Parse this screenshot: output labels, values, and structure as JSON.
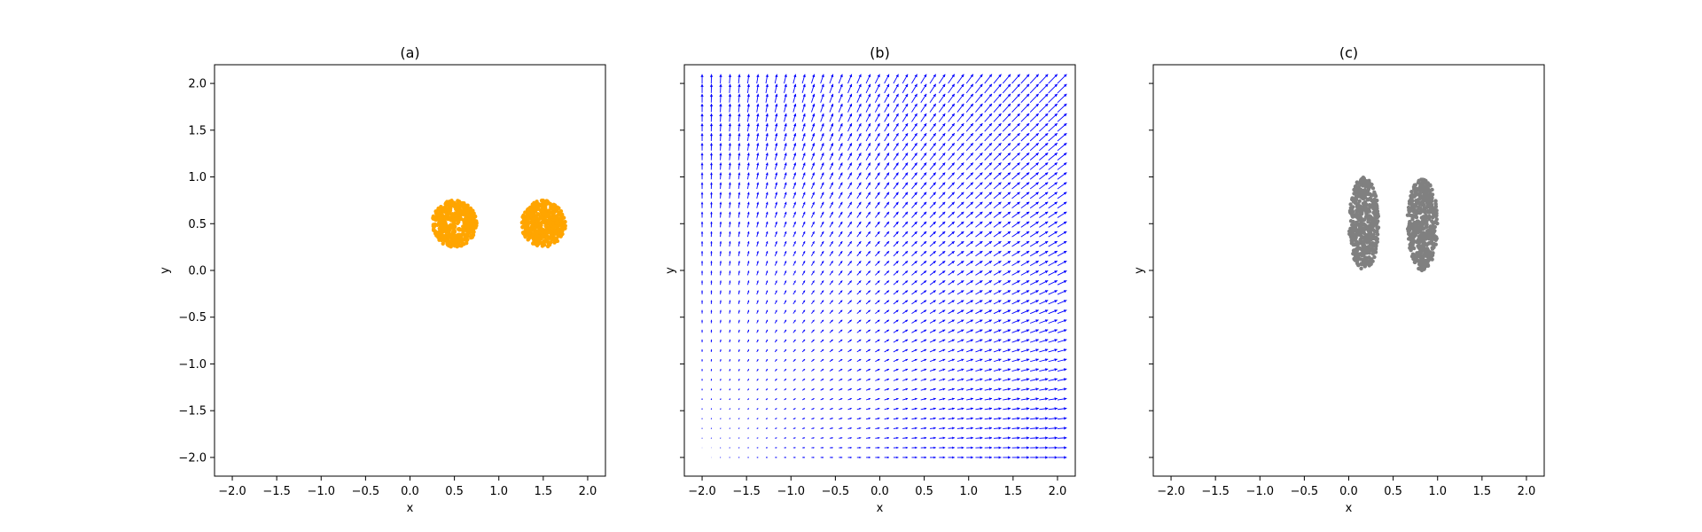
{
  "chart_data": [
    {
      "type": "scatter",
      "title": "(a)",
      "xlabel": "x",
      "ylabel": "y",
      "xlim": [
        -2.2,
        2.2
      ],
      "ylim": [
        -2.2,
        2.2
      ],
      "xticks": [
        -2.0,
        -1.5,
        -1.0,
        -0.5,
        0.0,
        0.5,
        1.0,
        1.5,
        2.0
      ],
      "yticks": [
        -2.0,
        -1.5,
        -1.0,
        -0.5,
        0.0,
        0.5,
        1.0,
        1.5,
        2.0
      ],
      "show_yticklabels": true,
      "grid": false,
      "color": "#ffa500",
      "clusters": [
        {
          "center": [
            0.5,
            0.5
          ],
          "rx": 0.25,
          "ry": 0.25,
          "count": 500
        },
        {
          "center": [
            1.5,
            0.5
          ],
          "rx": 0.25,
          "ry": 0.25,
          "count": 500
        }
      ]
    },
    {
      "type": "quiver",
      "title": "(b)",
      "xlabel": "x",
      "ylabel": "y",
      "xlim": [
        -2.2,
        2.2
      ],
      "ylim": [
        -2.2,
        2.2
      ],
      "xticks": [
        -2.0,
        -1.5,
        -1.0,
        -0.5,
        0.0,
        0.5,
        1.0,
        1.5,
        2.0
      ],
      "yticks": [
        -2.0,
        -1.5,
        -1.0,
        -0.5,
        0.0,
        0.5,
        1.0,
        1.5,
        2.0
      ],
      "show_yticklabels": false,
      "grid": false,
      "color": "#0000ff",
      "field": {
        "x_range": [
          -2,
          2
        ],
        "y_range": [
          -2,
          2
        ],
        "n": 40,
        "u": "x + 2",
        "v": "y + 2"
      }
    },
    {
      "type": "scatter",
      "title": "(c)",
      "xlabel": "x",
      "ylabel": "y",
      "xlim": [
        -2.2,
        2.2
      ],
      "ylim": [
        -2.2,
        2.2
      ],
      "xticks": [
        -2.0,
        -1.5,
        -1.0,
        -0.5,
        0.0,
        0.5,
        1.0,
        1.5,
        2.0
      ],
      "yticks": [
        -2.0,
        -1.5,
        -1.0,
        -0.5,
        0.0,
        0.5,
        1.0,
        1.5,
        2.0
      ],
      "show_yticklabels": false,
      "grid": false,
      "color": "#808080",
      "clusters": [
        {
          "center": [
            0.17,
            0.5
          ],
          "rx": 0.17,
          "ry": 0.5,
          "count": 500
        },
        {
          "center": [
            0.83,
            0.5
          ],
          "rx": 0.17,
          "ry": 0.5,
          "count": 500
        }
      ]
    }
  ]
}
